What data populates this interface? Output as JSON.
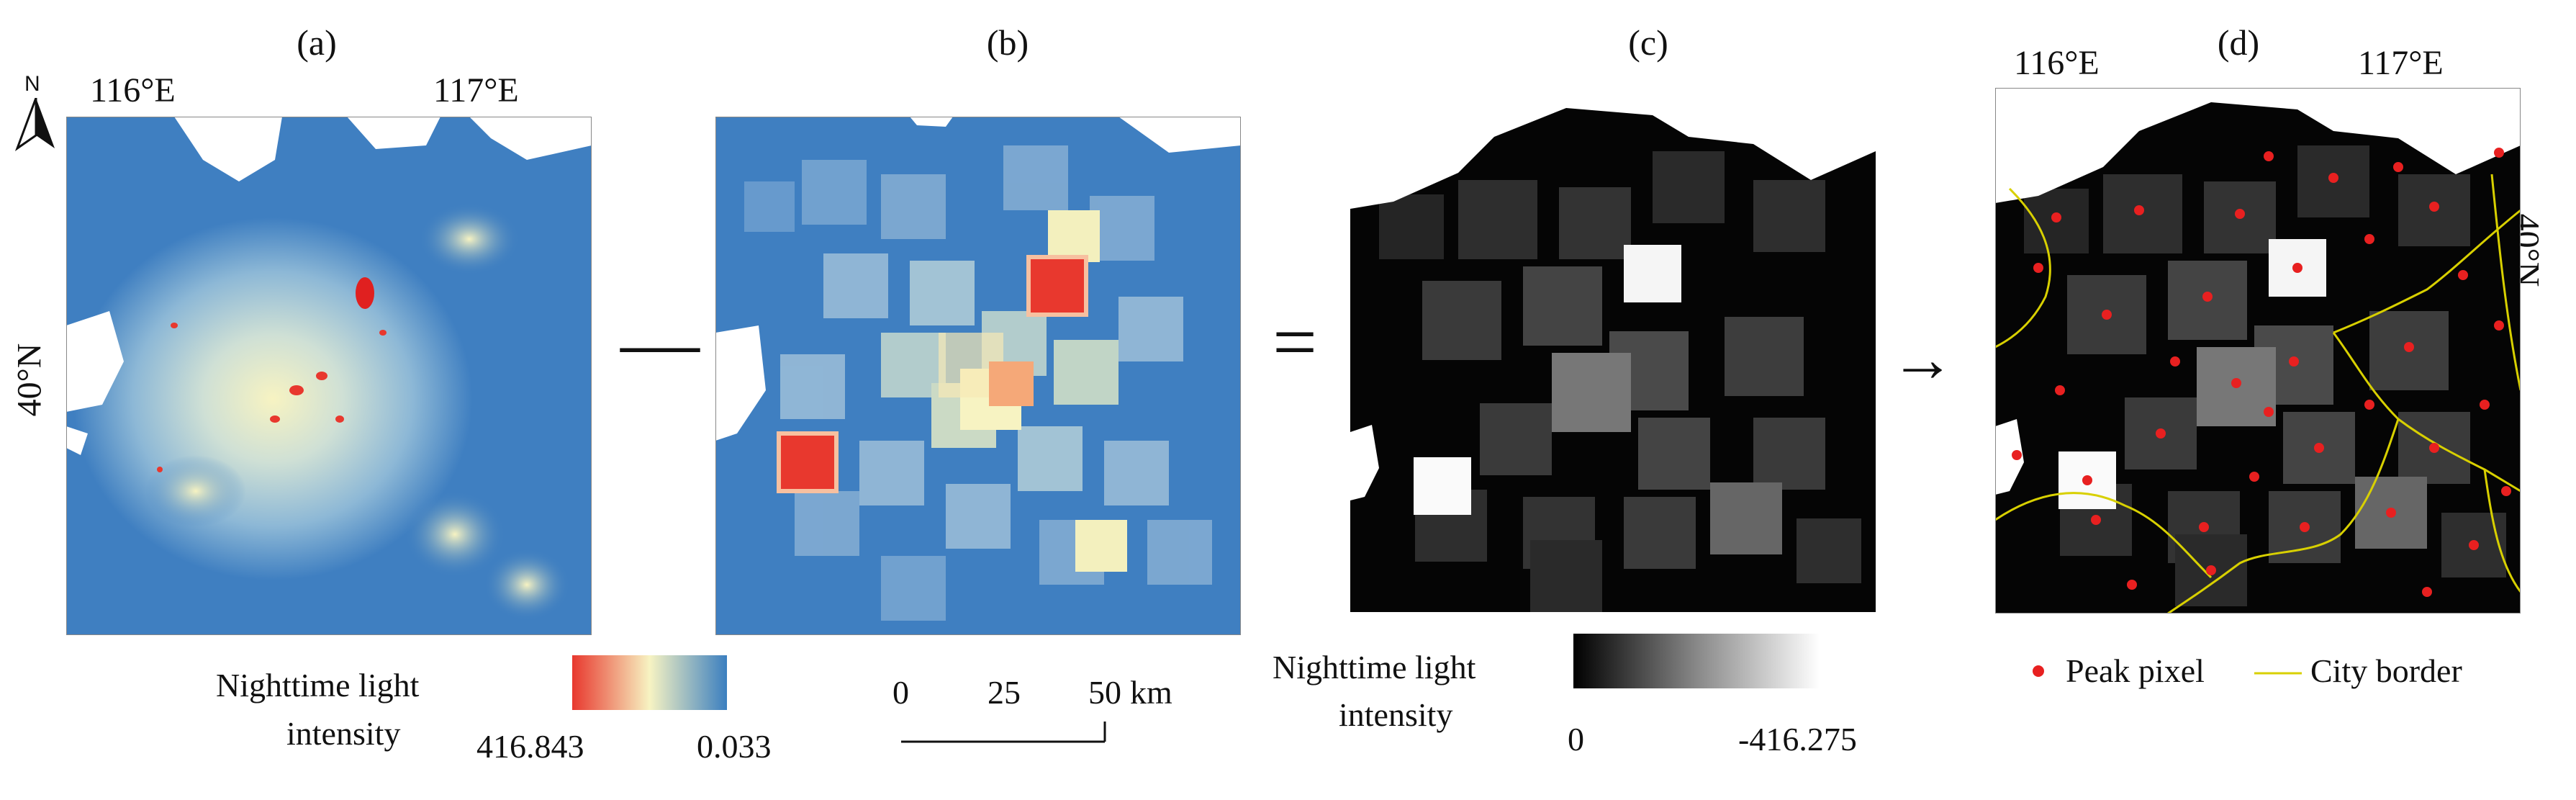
{
  "panels": {
    "a": {
      "label": "(a)"
    },
    "b": {
      "label": "(b)"
    },
    "c": {
      "label": "(c)"
    },
    "d": {
      "label": "(d)"
    }
  },
  "north_label": "N",
  "coords": {
    "a_lon1": "116°E",
    "a_lon2": "117°E",
    "a_lat": "40°N",
    "d_lon1": "116°E",
    "d_lon2": "117°E",
    "d_lat": "40°N"
  },
  "operators": {
    "minus": "—",
    "equals": "=",
    "arrow": "→"
  },
  "legend_a": {
    "title_line1": "Nighttime light",
    "title_line2": "intensity",
    "max": "416.843",
    "min": "0.033",
    "colors": [
      "#e8382e",
      "#f7f3c2",
      "#3b7fc0"
    ]
  },
  "scalebar": {
    "t0": "0",
    "t25": "25",
    "t50": "50",
    "unit": "km"
  },
  "legend_c": {
    "title_line1": "Nighttime light",
    "title_line2": "intensity",
    "min": "0",
    "max": "-416.275"
  },
  "legend_d": {
    "peak": "Peak pixel",
    "border": "City border",
    "peak_color": "#e82020",
    "border_color": "#d8d000"
  },
  "colors": {
    "map_blue": "#3f7fc1",
    "bright_red": "#e02020"
  }
}
